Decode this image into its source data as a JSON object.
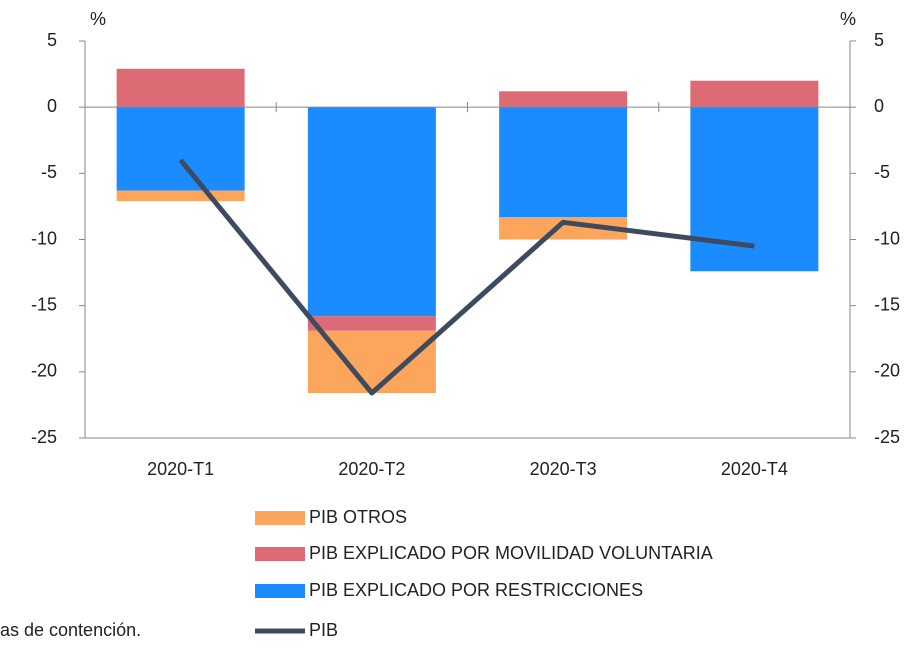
{
  "chart_data": {
    "type": "bar",
    "categories": [
      "2020-T1",
      "2020-T2",
      "2020-T3",
      "2020-T4"
    ],
    "series": [
      {
        "name": "PIB OTROS",
        "type": "bar",
        "color": "#fca55d",
        "values": [
          -0.8,
          -4.7,
          -1.7,
          0
        ]
      },
      {
        "name": "PIB EXPLICADO POR MOVILIDAD VOLUNTARIA",
        "type": "bar",
        "color": "#dc6b76",
        "values": [
          2.9,
          -1.1,
          1.2,
          2.0
        ]
      },
      {
        "name": "PIB EXPLICADO POR RESTRICCIONES",
        "type": "bar",
        "color": "#1a8cff",
        "values": [
          -6.3,
          -15.8,
          -8.3,
          -12.4
        ]
      },
      {
        "name": "PIB",
        "type": "line",
        "color": "#3e4a5e",
        "values": [
          -4.0,
          -21.6,
          -8.7,
          -10.5
        ]
      }
    ],
    "y_label": "%",
    "y2_label": "%",
    "ylim": [
      -25,
      5
    ],
    "yticks": [
      5,
      0,
      -5,
      -10,
      -15,
      -20,
      -25
    ],
    "y2lim": [
      -25,
      5
    ],
    "y2ticks": [
      5,
      0,
      -5,
      -10,
      -15,
      -20,
      -25
    ],
    "footnote": "as de contención."
  }
}
